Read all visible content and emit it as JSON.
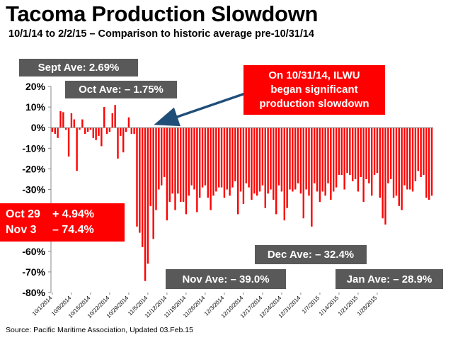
{
  "title": "Tacoma Production Slowdown",
  "subtitle": "10/1/14 to 2/2/15 – Comparison to historic average pre-10/31/14",
  "source": "Source:  Pacific Maritime Association, Updated 03.Feb.15",
  "colors": {
    "bars": "#ff0000",
    "label_box": "#595959",
    "callout": "#ff0000",
    "arrow": "#1f4e79"
  },
  "annotations": {
    "sept_ave": "Sept Ave:  2.69%",
    "oct_ave": "Oct  Ave:  – 1.75%",
    "callout_lines": [
      "On 10/31/14, ILWU",
      "began significant",
      "production slowdown"
    ],
    "oct29_label": "Oct 29",
    "oct29_value": "+ 4.94%",
    "nov3_label": "Nov  3",
    "nov3_value": "– 74.4%",
    "nov_ave": "Nov Ave:   – 39.0%",
    "dec_ave": "Dec Ave:  – 32.4%",
    "jan_ave": "Jan Ave:  – 28.9%"
  },
  "chart_data": {
    "type": "bar",
    "title": "Tacoma Production Slowdown",
    "xlabel": "",
    "ylabel": "",
    "ylim": [
      -80,
      20
    ],
    "yticks": [
      20,
      10,
      0,
      -10,
      -20,
      -30,
      -40,
      -50,
      -60,
      -70,
      -80
    ],
    "ytick_labels": [
      "20%",
      "10%",
      "0%",
      "-10%",
      "-20%",
      "-30%",
      "-40%",
      "-50%",
      "-60%",
      "-70%",
      "-80%"
    ],
    "xtick_labels": [
      "10/1/2014",
      "10/8/2014",
      "10/15/2014",
      "10/22/2014",
      "10/29/2014",
      "11/5/2014",
      "11/12/2014",
      "11/19/2014",
      "11/26/2014",
      "12/3/2014",
      "12/10/2014",
      "12/17/2014",
      "12/24/2014",
      "12/31/2014",
      "1/7/2015",
      "1/14/2015",
      "1/21/2015",
      "1/28/2015"
    ],
    "start_date": "10/1/2014",
    "grid": false,
    "values": [
      -2,
      -3,
      -5,
      8,
      7.5,
      -1,
      -14,
      7,
      4,
      -21,
      -1,
      4,
      -3,
      -2,
      -1,
      -5,
      -6,
      -4,
      -9,
      10,
      -3,
      -2,
      7,
      11,
      -15,
      -4,
      -12,
      -2,
      5,
      -3,
      -3,
      -48,
      -51,
      -58,
      -74.4,
      -66,
      -38,
      -54,
      -40,
      -30,
      -28,
      -24,
      -45,
      -36,
      -32,
      -40,
      -32,
      -36,
      -36,
      -42,
      -33,
      -28,
      -30,
      -41,
      -34,
      -29,
      -28,
      -34,
      -40,
      -33,
      -31,
      -29,
      -29,
      -34,
      -30,
      -33,
      -29,
      -26,
      -42,
      -31,
      -37,
      -27,
      -29,
      -35,
      -32,
      -33,
      -31,
      -28,
      -39,
      -32,
      -30,
      -35,
      -42,
      -28,
      -31,
      -45,
      -39,
      -30,
      -31,
      -30,
      -27,
      -32,
      -44,
      -30,
      -33,
      -48,
      -27,
      -31,
      -36,
      -31,
      -33,
      -27,
      -35,
      -31,
      -29,
      -23,
      -23,
      -30,
      -22,
      -23,
      -26,
      -25,
      -31,
      -24,
      -36,
      -25,
      -27,
      -33,
      -23,
      -22,
      -34,
      -44,
      -47,
      -27,
      -25,
      -34,
      -33,
      -38,
      -40,
      -28,
      -30,
      -30,
      -31,
      -26,
      -21,
      -24,
      -23,
      -34,
      -35,
      -33
    ]
  }
}
